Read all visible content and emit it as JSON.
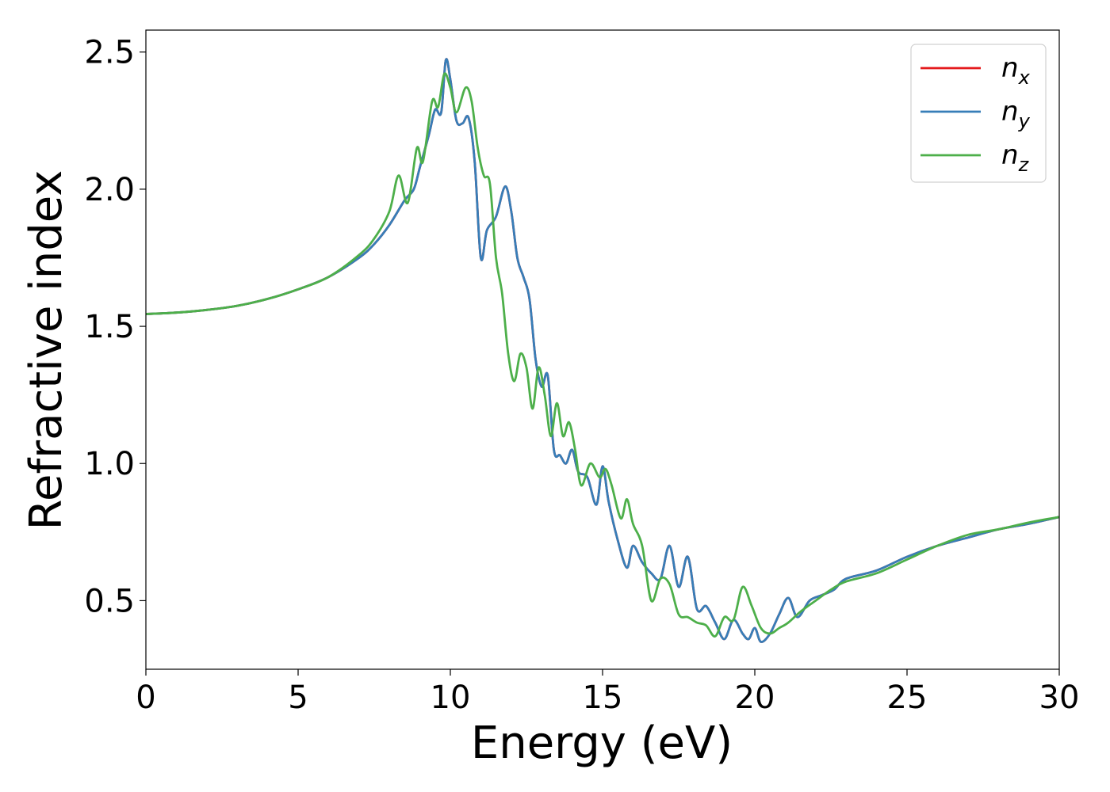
{
  "chart_data": {
    "type": "line",
    "xlabel": "Energy (eV)",
    "ylabel": "Refractive index",
    "xlim": [
      0,
      30
    ],
    "ylim": [
      0.25,
      2.58
    ],
    "x_ticks": [
      "0",
      "5",
      "10",
      "15",
      "20",
      "25",
      "30"
    ],
    "y_ticks": [
      "0.5",
      "1.0",
      "1.5",
      "2.0",
      "2.5"
    ],
    "grid": false,
    "legend_position": "top-right",
    "series": [
      {
        "name": "n",
        "sub": "x",
        "color": "#e41a1c",
        "x": [
          0,
          1,
          2,
          3,
          4,
          5,
          6,
          7,
          7.5,
          8,
          8.5,
          8.8,
          9.0,
          9.3,
          9.5,
          9.7,
          9.85,
          10.0,
          10.2,
          10.4,
          10.6,
          10.8,
          11.0,
          11.2,
          11.5,
          11.8,
          12.0,
          12.2,
          12.4,
          12.6,
          12.8,
          13.0,
          13.2,
          13.4,
          13.6,
          13.8,
          14.0,
          14.2,
          14.5,
          14.8,
          15.0,
          15.2,
          15.5,
          15.8,
          16.0,
          16.3,
          16.6,
          16.9,
          17.2,
          17.5,
          17.8,
          18.1,
          18.4,
          18.7,
          19.0,
          19.3,
          19.6,
          19.8,
          20.0,
          20.2,
          20.5,
          20.8,
          21.1,
          21.4,
          21.8,
          22.2,
          22.6,
          23,
          24,
          25,
          26,
          27,
          28,
          29,
          30
        ],
        "values": [
          1.545,
          1.55,
          1.56,
          1.575,
          1.6,
          1.635,
          1.68,
          1.75,
          1.8,
          1.87,
          1.96,
          2.0,
          2.08,
          2.2,
          2.29,
          2.28,
          2.47,
          2.4,
          2.25,
          2.24,
          2.26,
          2.1,
          1.75,
          1.85,
          1.9,
          2.01,
          1.92,
          1.75,
          1.68,
          1.6,
          1.38,
          1.28,
          1.32,
          1.05,
          1.03,
          1.0,
          1.05,
          0.97,
          0.95,
          0.85,
          0.99,
          0.86,
          0.72,
          0.62,
          0.7,
          0.64,
          0.6,
          0.58,
          0.7,
          0.55,
          0.66,
          0.47,
          0.48,
          0.42,
          0.36,
          0.43,
          0.38,
          0.36,
          0.4,
          0.35,
          0.38,
          0.45,
          0.51,
          0.44,
          0.5,
          0.52,
          0.54,
          0.58,
          0.61,
          0.66,
          0.7,
          0.73,
          0.76,
          0.78,
          0.805
        ]
      },
      {
        "name": "n",
        "sub": "y",
        "color": "#377eb8",
        "x": [
          0,
          1,
          2,
          3,
          4,
          5,
          6,
          7,
          7.5,
          8,
          8.5,
          8.8,
          9.0,
          9.3,
          9.5,
          9.7,
          9.85,
          10.0,
          10.2,
          10.4,
          10.6,
          10.8,
          11.0,
          11.2,
          11.5,
          11.8,
          12.0,
          12.2,
          12.4,
          12.6,
          12.8,
          13.0,
          13.2,
          13.4,
          13.6,
          13.8,
          14.0,
          14.2,
          14.5,
          14.8,
          15.0,
          15.2,
          15.5,
          15.8,
          16.0,
          16.3,
          16.6,
          16.9,
          17.2,
          17.5,
          17.8,
          18.1,
          18.4,
          18.7,
          19.0,
          19.3,
          19.6,
          19.8,
          20.0,
          20.2,
          20.5,
          20.8,
          21.1,
          21.4,
          21.8,
          22.2,
          22.6,
          23,
          24,
          25,
          26,
          27,
          28,
          29,
          30
        ],
        "values": [
          1.545,
          1.55,
          1.56,
          1.575,
          1.6,
          1.635,
          1.68,
          1.75,
          1.8,
          1.87,
          1.96,
          2.0,
          2.08,
          2.2,
          2.29,
          2.28,
          2.47,
          2.4,
          2.25,
          2.24,
          2.26,
          2.1,
          1.75,
          1.85,
          1.9,
          2.01,
          1.92,
          1.75,
          1.68,
          1.6,
          1.38,
          1.28,
          1.32,
          1.05,
          1.03,
          1.0,
          1.05,
          0.97,
          0.95,
          0.85,
          0.99,
          0.86,
          0.72,
          0.62,
          0.7,
          0.64,
          0.6,
          0.58,
          0.7,
          0.55,
          0.66,
          0.47,
          0.48,
          0.42,
          0.36,
          0.43,
          0.38,
          0.36,
          0.4,
          0.35,
          0.38,
          0.45,
          0.51,
          0.44,
          0.5,
          0.52,
          0.54,
          0.58,
          0.61,
          0.66,
          0.7,
          0.73,
          0.76,
          0.78,
          0.805
        ]
      },
      {
        "name": "n",
        "sub": "z",
        "color": "#4daf4a",
        "x": [
          0,
          1,
          2,
          3,
          4,
          5,
          6,
          7,
          7.5,
          8,
          8.3,
          8.6,
          8.9,
          9.1,
          9.4,
          9.6,
          9.8,
          10.0,
          10.2,
          10.5,
          10.7,
          10.9,
          11.1,
          11.3,
          11.5,
          11.7,
          11.9,
          12.1,
          12.3,
          12.5,
          12.7,
          12.9,
          13.1,
          13.3,
          13.5,
          13.7,
          13.9,
          14.1,
          14.3,
          14.6,
          14.9,
          15.1,
          15.3,
          15.6,
          15.8,
          16.0,
          16.3,
          16.6,
          16.9,
          17.2,
          17.5,
          17.8,
          18.1,
          18.4,
          18.7,
          19.0,
          19.3,
          19.6,
          19.9,
          20.2,
          20.5,
          20.8,
          21.1,
          21.5,
          22,
          22.5,
          23,
          24,
          25,
          26,
          27,
          28,
          29,
          30
        ],
        "values": [
          1.545,
          1.55,
          1.56,
          1.575,
          1.6,
          1.635,
          1.68,
          1.76,
          1.82,
          1.92,
          2.05,
          1.95,
          2.15,
          2.1,
          2.32,
          2.3,
          2.42,
          2.37,
          2.28,
          2.37,
          2.32,
          2.15,
          2.05,
          2.02,
          1.75,
          1.62,
          1.4,
          1.3,
          1.4,
          1.35,
          1.2,
          1.35,
          1.25,
          1.1,
          1.22,
          1.1,
          1.15,
          1.05,
          0.92,
          1.0,
          0.95,
          0.98,
          0.92,
          0.8,
          0.87,
          0.78,
          0.7,
          0.5,
          0.58,
          0.56,
          0.45,
          0.44,
          0.42,
          0.41,
          0.37,
          0.44,
          0.43,
          0.55,
          0.48,
          0.4,
          0.38,
          0.4,
          0.42,
          0.46,
          0.5,
          0.54,
          0.57,
          0.6,
          0.65,
          0.7,
          0.74,
          0.76,
          0.785,
          0.805
        ]
      }
    ]
  }
}
